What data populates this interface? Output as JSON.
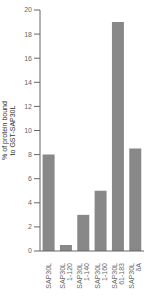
{
  "chart_data": {
    "type": "bar",
    "categories": [
      "SAP30L",
      "SAP30L\n1-120",
      "SAP30L\n1-140",
      "SAP30L\n1-160",
      "SAP30L\n61-183",
      "SAP30L\nδA"
    ],
    "values": [
      8.0,
      0.5,
      3.0,
      5.0,
      19.0,
      8.5
    ],
    "color": "#888888",
    "ylabel": "% of protein bound\nto GST-SAP30L",
    "ylim": [
      0,
      20
    ],
    "yticks": [
      0,
      2,
      4,
      6,
      8,
      10,
      12,
      14,
      16,
      18,
      20
    ],
    "grid": false
  }
}
